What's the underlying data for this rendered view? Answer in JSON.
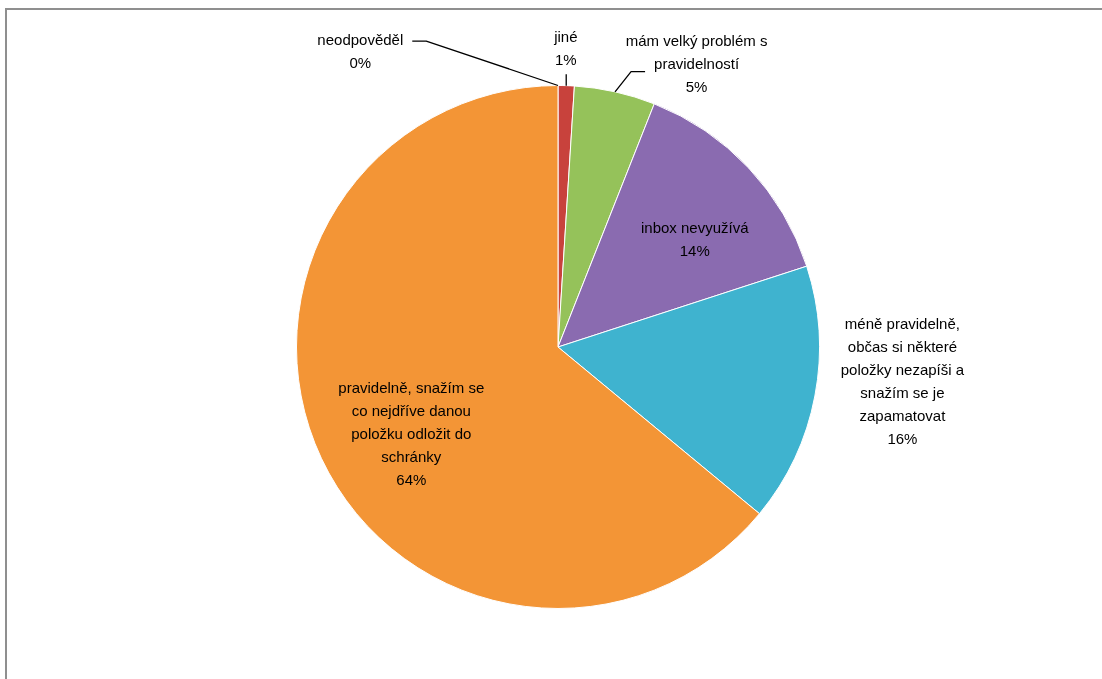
{
  "chart_data": {
    "type": "pie",
    "categories": [
      "neodpověděl",
      "jiné",
      "mám velký problém s pravidelností",
      "inbox nevyužívá",
      "méně pravidelně, občas si některé položky nezapíši a snažím se je zapamatovat",
      "pravidelně, snažím se co nejdříve danou položku odložit do schránky"
    ],
    "values": [
      0,
      1,
      5,
      14,
      16,
      64
    ],
    "value_labels": [
      "0%",
      "1%",
      "5%",
      "14%",
      "16%",
      "64%"
    ],
    "colors": [
      "#4f81bd",
      "#c8423c",
      "#95c25a",
      "#8a6bb0",
      "#3fb3cf",
      "#f39536"
    ]
  }
}
